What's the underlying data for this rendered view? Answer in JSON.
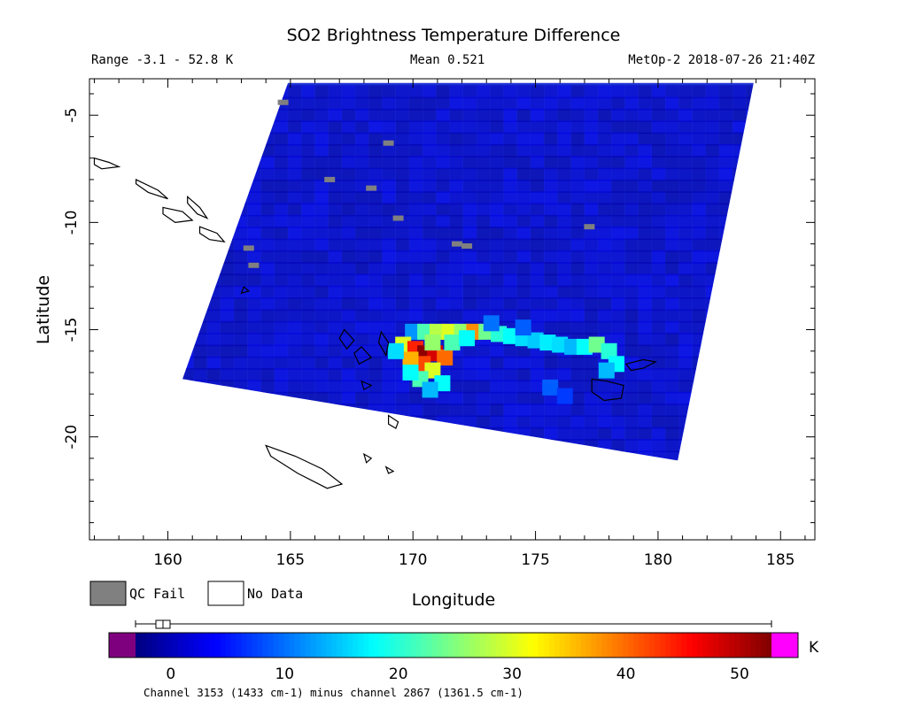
{
  "title": "SO2 Brightness Temperature Difference",
  "range_text": "Range -3.1 - 52.8 K",
  "mean_text": "Mean 0.521",
  "satellite_text": "MetOp-2 2018-07-26 21:40Z",
  "map": {
    "xlabel": "Longitude",
    "ylabel": "Latitude",
    "xlim": [
      156.8,
      186.4
    ],
    "ylim": [
      -24.8,
      -3.3
    ],
    "x_ticks": [
      160,
      165,
      170,
      175,
      180,
      185
    ],
    "y_ticks": [
      -5,
      -10,
      -15,
      -20
    ],
    "swath_corners": [
      [
        164.9,
        -3.5
      ],
      [
        183.9,
        -3.5
      ],
      [
        180.8,
        -21.1
      ],
      [
        160.6,
        -17.3
      ]
    ],
    "colors": {
      "background_field": "#1f33d4",
      "qc_fail": "#808080",
      "coastline": "#000000"
    }
  },
  "legend": {
    "qc_fail_label": "QC Fail",
    "no_data_label": "No Data"
  },
  "colorbar": {
    "unit": "K",
    "ticks": [
      0,
      10,
      20,
      30,
      40,
      50
    ],
    "range": [
      -3.1,
      52.8
    ],
    "under_color": "#7f007f",
    "over_color": "#ff00ff",
    "caption": "Channel 3153 (1433 cm-1) minus channel 2867 (1361.5 cm-1)"
  },
  "plume": [
    [
      170.0,
      -15.1,
      12
    ],
    [
      170.5,
      -15.1,
      22
    ],
    [
      171.0,
      -15.1,
      28
    ],
    [
      171.5,
      -15.1,
      30
    ],
    [
      172.0,
      -15.1,
      26
    ],
    [
      172.5,
      -15.1,
      38
    ],
    [
      173.0,
      -15.1,
      24
    ],
    [
      173.5,
      -15.2,
      20
    ],
    [
      174.0,
      -15.3,
      18
    ],
    [
      174.5,
      -15.4,
      16
    ],
    [
      175.0,
      -15.5,
      15
    ],
    [
      175.5,
      -15.6,
      17
    ],
    [
      176.0,
      -15.7,
      16
    ],
    [
      176.5,
      -15.8,
      14
    ],
    [
      177.0,
      -15.8,
      18
    ],
    [
      177.5,
      -15.7,
      24
    ],
    [
      178.0,
      -16.0,
      20
    ],
    [
      178.3,
      -16.6,
      18
    ],
    [
      177.9,
      -16.9,
      14
    ],
    [
      169.6,
      -15.7,
      30
    ],
    [
      170.1,
      -15.9,
      44
    ],
    [
      170.5,
      -16.1,
      52
    ],
    [
      170.9,
      -16.1,
      48
    ],
    [
      171.3,
      -16.3,
      40
    ],
    [
      170.4,
      -16.6,
      42
    ],
    [
      169.9,
      -16.4,
      36
    ],
    [
      170.8,
      -16.9,
      30
    ],
    [
      170.3,
      -17.3,
      22
    ],
    [
      171.2,
      -17.5,
      18
    ],
    [
      170.7,
      -17.8,
      14
    ],
    [
      169.9,
      -17.0,
      18
    ],
    [
      171.6,
      -15.6,
      22
    ],
    [
      172.2,
      -15.4,
      18
    ],
    [
      170.8,
      -15.6,
      26
    ],
    [
      169.3,
      -16.0,
      16
    ],
    [
      175.6,
      -17.7,
      9
    ],
    [
      176.2,
      -18.1,
      7
    ],
    [
      173.2,
      -14.7,
      10
    ],
    [
      174.5,
      -14.9,
      9
    ]
  ],
  "qc_fail_pixels": [
    [
      164.7,
      -4.4
    ],
    [
      169.0,
      -6.3
    ],
    [
      166.6,
      -8.0
    ],
    [
      168.3,
      -8.4
    ],
    [
      169.4,
      -9.8
    ],
    [
      177.2,
      -10.2
    ],
    [
      171.8,
      -11.0
    ],
    [
      172.2,
      -11.1
    ],
    [
      163.3,
      -11.2
    ],
    [
      163.5,
      -12.0
    ]
  ],
  "coastlines": [
    [
      [
        157.0,
        -7.0
      ],
      [
        157.6,
        -7.2
      ],
      [
        158.0,
        -7.4
      ],
      [
        157.3,
        -7.5
      ],
      [
        157.0,
        -7.3
      ]
    ],
    [
      [
        158.7,
        -8.0
      ],
      [
        159.6,
        -8.5
      ],
      [
        160.0,
        -8.9
      ],
      [
        159.2,
        -8.6
      ],
      [
        158.7,
        -8.2
      ]
    ],
    [
      [
        159.8,
        -9.3
      ],
      [
        160.6,
        -9.5
      ],
      [
        161.0,
        -9.9
      ],
      [
        160.3,
        -10.0
      ],
      [
        159.8,
        -9.6
      ]
    ],
    [
      [
        160.8,
        -8.8
      ],
      [
        161.3,
        -9.3
      ],
      [
        161.6,
        -9.8
      ],
      [
        161.2,
        -9.6
      ],
      [
        160.8,
        -9.1
      ]
    ],
    [
      [
        161.3,
        -10.2
      ],
      [
        162.0,
        -10.5
      ],
      [
        162.3,
        -10.9
      ],
      [
        161.7,
        -10.8
      ],
      [
        161.3,
        -10.5
      ]
    ],
    [
      [
        168.7,
        -15.1
      ],
      [
        169.0,
        -15.6
      ],
      [
        168.9,
        -16.2
      ],
      [
        168.6,
        -15.6
      ]
    ],
    [
      [
        167.2,
        -15.0
      ],
      [
        167.6,
        -15.5
      ],
      [
        167.3,
        -15.9
      ],
      [
        167.0,
        -15.4
      ]
    ],
    [
      [
        167.9,
        -15.8
      ],
      [
        168.3,
        -16.3
      ],
      [
        167.8,
        -16.6
      ],
      [
        167.6,
        -16.1
      ]
    ],
    [
      [
        164.0,
        -20.4
      ],
      [
        165.2,
        -20.9
      ],
      [
        166.3,
        -21.5
      ],
      [
        167.1,
        -22.2
      ],
      [
        166.5,
        -22.4
      ],
      [
        165.3,
        -21.7
      ],
      [
        164.2,
        -20.9
      ]
    ],
    [
      [
        177.3,
        -17.3
      ],
      [
        177.9,
        -17.4
      ],
      [
        178.6,
        -17.6
      ],
      [
        178.5,
        -18.2
      ],
      [
        177.8,
        -18.3
      ],
      [
        177.3,
        -17.9
      ]
    ],
    [
      [
        178.7,
        -16.6
      ],
      [
        179.4,
        -16.4
      ],
      [
        179.9,
        -16.5
      ],
      [
        179.4,
        -16.8
      ],
      [
        178.9,
        -16.9
      ]
    ],
    [
      [
        169.0,
        -19.0
      ],
      [
        169.4,
        -19.3
      ],
      [
        169.3,
        -19.6
      ],
      [
        169.0,
        -19.4
      ]
    ],
    [
      [
        168.0,
        -20.8
      ],
      [
        168.3,
        -21.0
      ],
      [
        168.1,
        -21.2
      ]
    ],
    [
      [
        168.9,
        -21.4
      ],
      [
        169.2,
        -21.6
      ],
      [
        169.0,
        -21.7
      ]
    ],
    [
      [
        167.9,
        -17.4
      ],
      [
        168.3,
        -17.6
      ],
      [
        168.0,
        -17.8
      ]
    ],
    [
      [
        163.1,
        -13.0
      ],
      [
        163.3,
        -13.2
      ],
      [
        163.0,
        -13.3
      ]
    ]
  ]
}
